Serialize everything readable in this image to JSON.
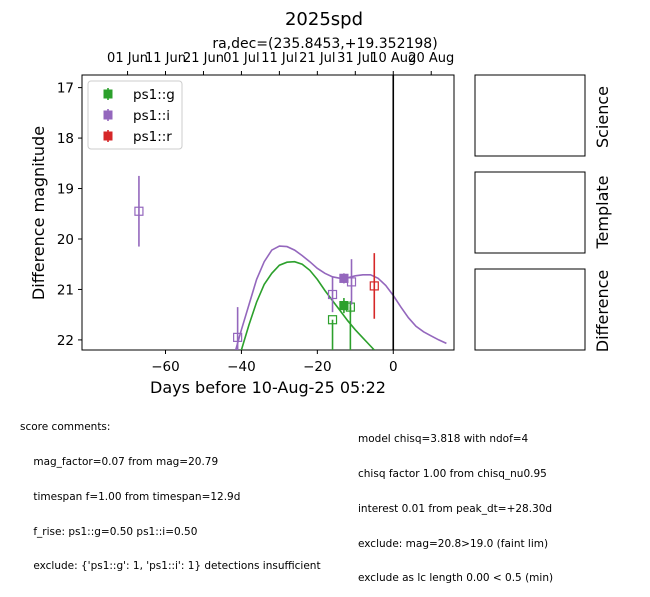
{
  "chart_data": {
    "type": "scatter",
    "title": "2025spd",
    "subtitle": "ra,dec=(235.8453,+19.352198)",
    "xlabel": "Days before 10-Aug-25 05:22",
    "ylabel": "Difference magnitude",
    "xlim": [
      -82,
      16
    ],
    "ylim": [
      22.2,
      16.75
    ],
    "y_inverted": true,
    "x_ticks": [
      -60,
      -40,
      -20,
      0
    ],
    "x_tick_labels": [
      "−60",
      "−40",
      "−20",
      "0"
    ],
    "y_ticks": [
      17,
      18,
      19,
      20,
      21,
      22
    ],
    "y_tick_labels": [
      "17",
      "18",
      "19",
      "20",
      "21",
      "22"
    ],
    "top_axis_ticks": [
      -70,
      -60,
      -50,
      -40,
      -30,
      -20,
      -10,
      0,
      10
    ],
    "top_axis_labels": [
      "01 Jun",
      "11 Jun",
      "21 Jun",
      "01 Jul",
      "11 Jul",
      "21 Jul",
      "31 Jul",
      "10 Aug",
      "20 Aug"
    ],
    "vline_x": 0,
    "legend_position": "upper-left",
    "series": [
      {
        "name": "ps1::g",
        "color": "#2ca02c",
        "points": [
          {
            "x": -16,
            "y": 21.6,
            "err": 0.0,
            "filled": false
          },
          {
            "x": -13,
            "y": 21.32,
            "err": 0.15,
            "filled": true
          },
          {
            "x": -11.3,
            "y": 21.35,
            "err": 0.12,
            "filled": false
          }
        ],
        "upper_limits": [
          {
            "x": -16,
            "y": 21.6
          },
          {
            "x": -11.3,
            "y": 21.35
          }
        ],
        "model": [
          [
            -40,
            22.2
          ],
          [
            -38,
            21.7
          ],
          [
            -36,
            21.25
          ],
          [
            -34,
            20.9
          ],
          [
            -32,
            20.68
          ],
          [
            -30,
            20.52
          ],
          [
            -28,
            20.46
          ],
          [
            -26,
            20.45
          ],
          [
            -24,
            20.5
          ],
          [
            -22,
            20.62
          ],
          [
            -20,
            20.8
          ],
          [
            -18,
            21.02
          ],
          [
            -16,
            21.22
          ],
          [
            -14,
            21.42
          ],
          [
            -12,
            21.62
          ],
          [
            -10,
            21.8
          ],
          [
            -8,
            21.96
          ],
          [
            -6,
            22.12
          ],
          [
            -5,
            22.2
          ]
        ]
      },
      {
        "name": "ps1::i",
        "color": "#9467bd",
        "points": [
          {
            "x": -67,
            "y": 19.45,
            "err": 0.7,
            "filled": false
          },
          {
            "x": -41,
            "y": 21.95,
            "err": 0.6,
            "filled": false
          },
          {
            "x": -16,
            "y": 21.1,
            "err": 0.35,
            "filled": false
          },
          {
            "x": -13,
            "y": 20.78,
            "err": 0.1,
            "filled": true
          },
          {
            "x": -11,
            "y": 20.85,
            "err": 0.45,
            "filled": false
          }
        ],
        "model": [
          [
            -41.5,
            22.2
          ],
          [
            -40,
            21.8
          ],
          [
            -38,
            21.3
          ],
          [
            -36,
            20.8
          ],
          [
            -34,
            20.45
          ],
          [
            -32,
            20.22
          ],
          [
            -30,
            20.14
          ],
          [
            -28,
            20.15
          ],
          [
            -26,
            20.22
          ],
          [
            -24,
            20.33
          ],
          [
            -22,
            20.45
          ],
          [
            -20,
            20.58
          ],
          [
            -18,
            20.68
          ],
          [
            -16,
            20.75
          ],
          [
            -14,
            20.78
          ],
          [
            -12,
            20.77
          ],
          [
            -10,
            20.73
          ],
          [
            -8,
            20.71
          ],
          [
            -6,
            20.71
          ],
          [
            -4,
            20.78
          ],
          [
            -2,
            20.92
          ],
          [
            0,
            21.12
          ],
          [
            2,
            21.35
          ],
          [
            4,
            21.56
          ],
          [
            6,
            21.73
          ],
          [
            8,
            21.84
          ],
          [
            10,
            21.92
          ],
          [
            12,
            22.0
          ],
          [
            14,
            22.07
          ]
        ]
      },
      {
        "name": "ps1::r",
        "color": "#d62728",
        "points": [
          {
            "x": -5,
            "y": 20.93,
            "err": 0.65,
            "filled": false
          }
        ]
      }
    ]
  },
  "panels": {
    "science": "Science",
    "template": "Template",
    "difference": "Difference"
  },
  "comments_left": [
    "score comments:",
    "    mag_factor=0.07 from mag=20.79",
    "    timespan f=1.00 from timespan=12.9d",
    "    f_rise: ps1::g=0.50 ps1::i=0.50",
    "    exclude: {'ps1::g': 1, 'ps1::i': 1} detections insufficient"
  ],
  "comments_right": [
    "model chisq=3.818 with ndof=4",
    "chisq factor 1.00 from chisq_nu0.95",
    "interest 0.01 from peak_dt=+28.30d",
    "exclude: mag=20.8>19.0 (faint lim)",
    "exclude as lc length 0.00 < 0.5 (min)"
  ]
}
